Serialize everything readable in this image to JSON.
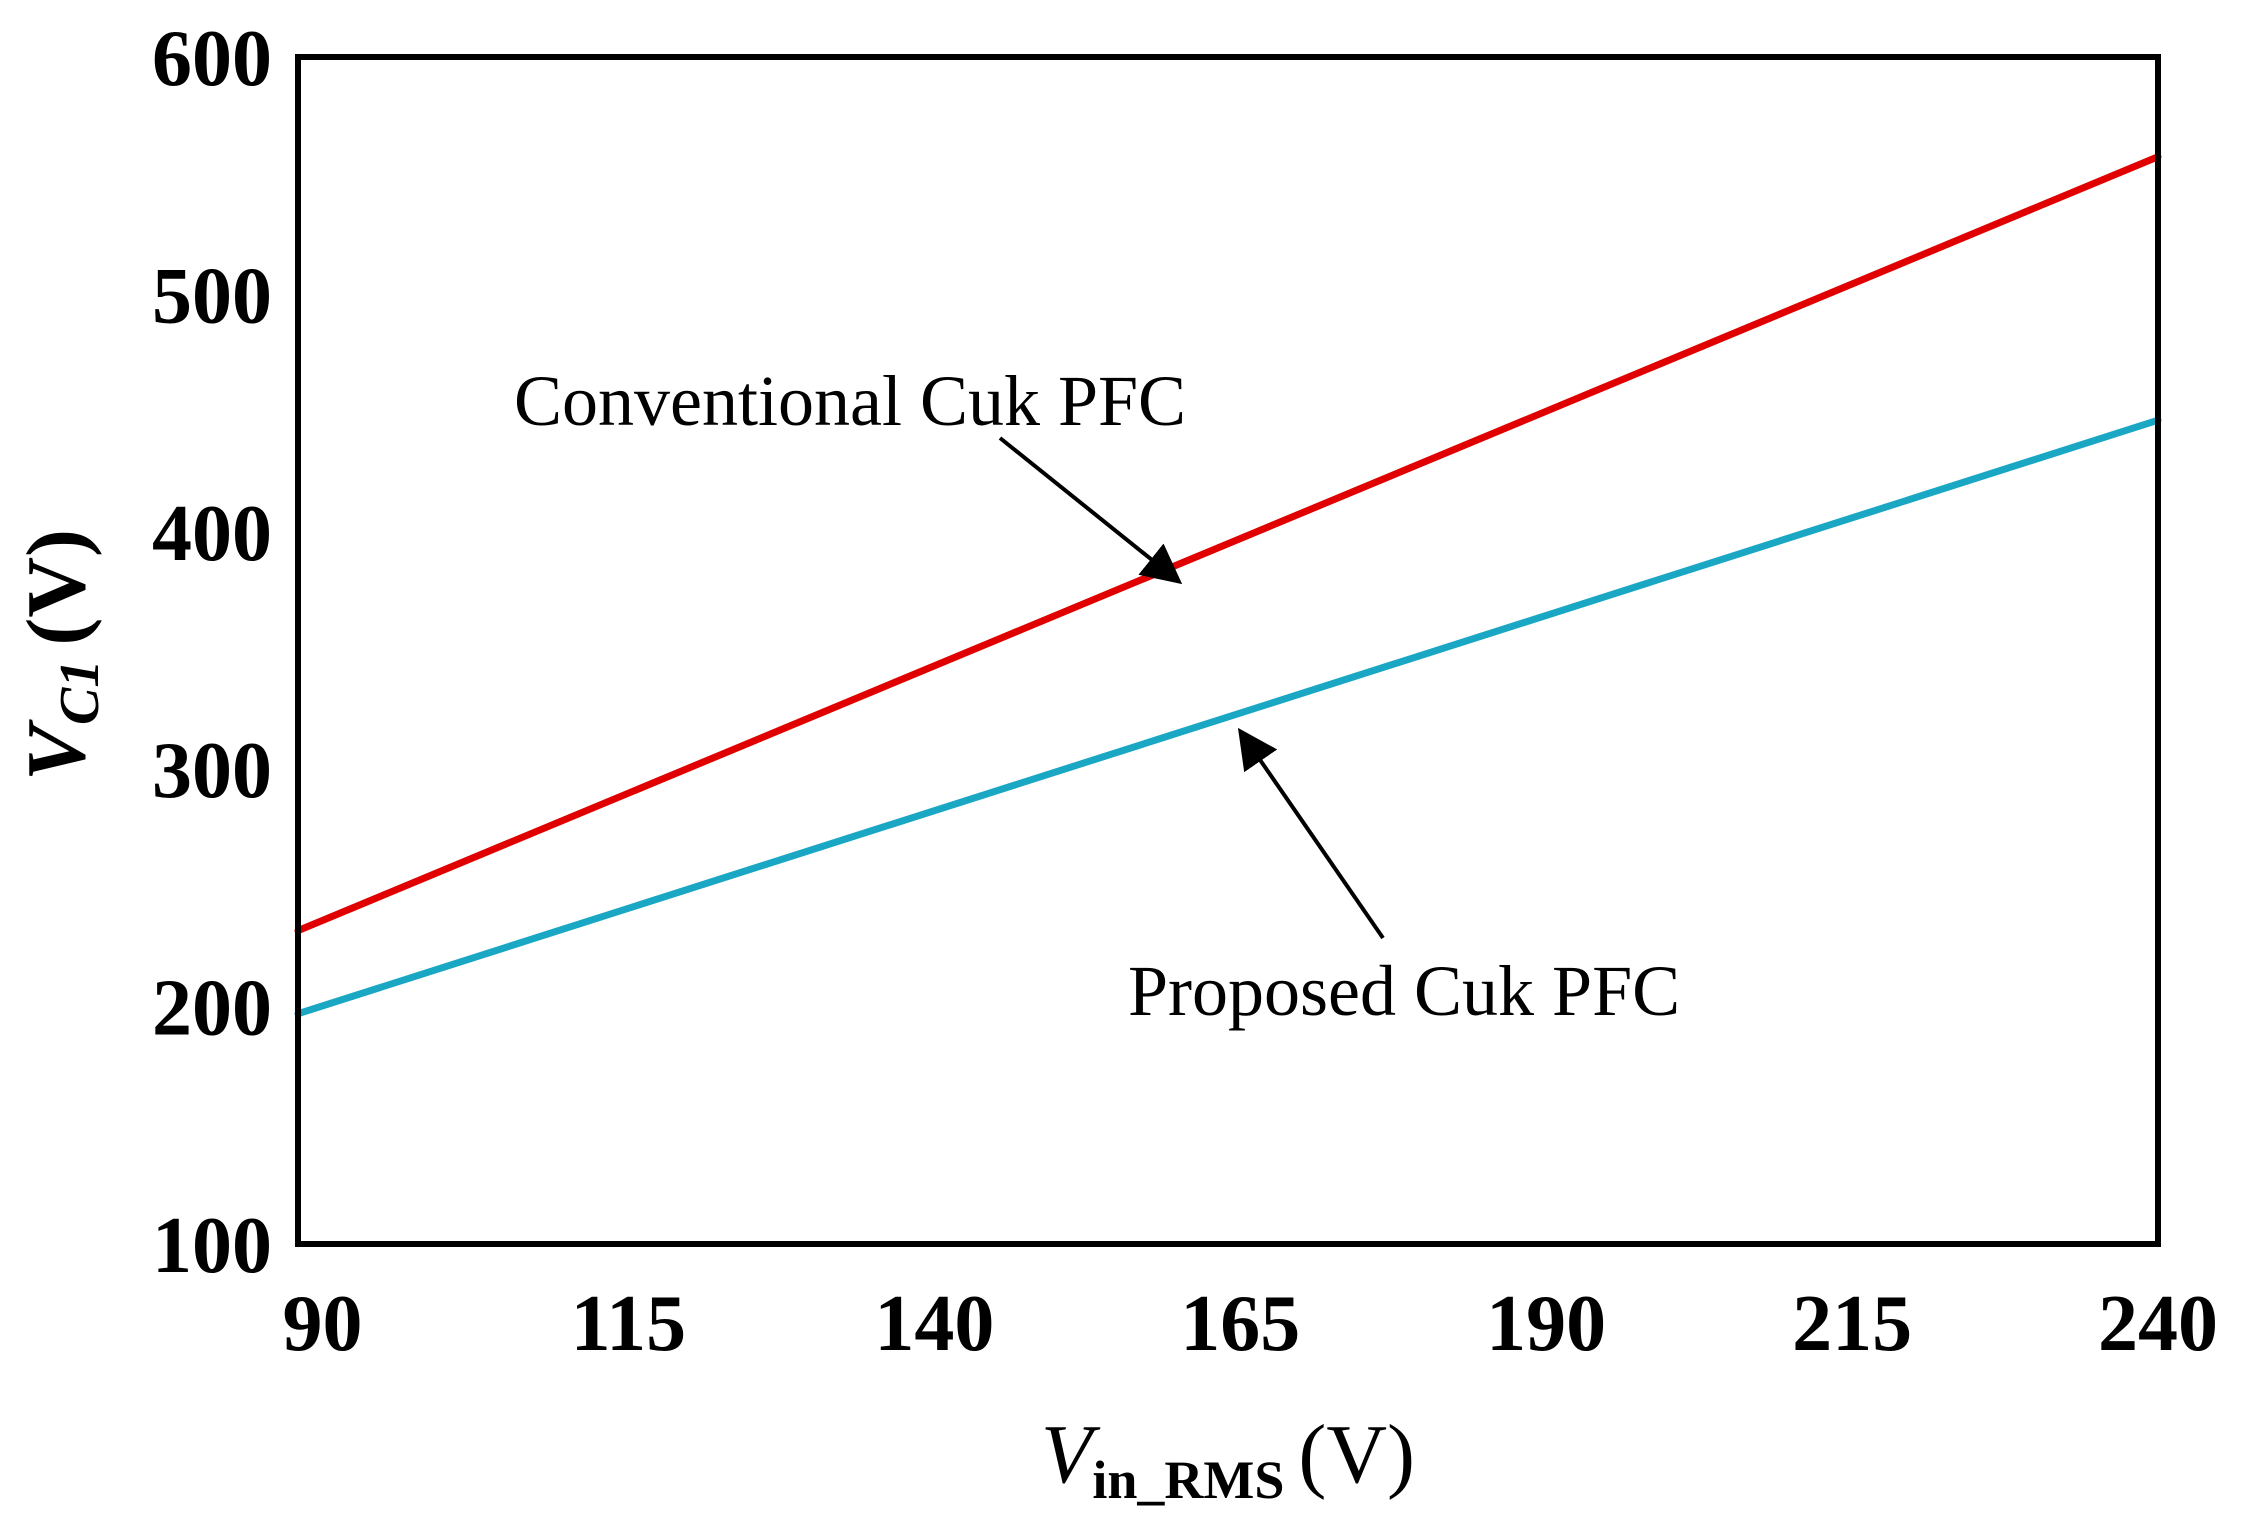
{
  "chart_data": {
    "type": "line",
    "title": "",
    "xlabel": {
      "main": "V",
      "sub": "in_RMS",
      "unit": "(V)"
    },
    "ylabel": {
      "main": "V",
      "sub": "C1",
      "unit": "(V)"
    },
    "xlim": [
      88,
      240
    ],
    "ylim": [
      100,
      600
    ],
    "xticks": [
      90,
      115,
      140,
      165,
      190,
      215,
      240
    ],
    "yticks": [
      100,
      200,
      300,
      400,
      500,
      600
    ],
    "grid": false,
    "series": [
      {
        "name": "Conventional Cuk PFC",
        "color": "#e00000",
        "x": [
          88,
          240
        ],
        "y": [
          232,
          558
        ]
      },
      {
        "name": "Proposed Cuk PFC",
        "color": "#1aa7c4",
        "x": [
          88,
          240
        ],
        "y": [
          197,
          447
        ]
      }
    ],
    "annotations": [
      {
        "text": "Conventional Cuk PFC",
        "target_series": 0,
        "target": [
          160,
          379
        ]
      },
      {
        "text": "Proposed Cuk PFC",
        "target_series": 1,
        "target": [
          165,
          316
        ]
      }
    ]
  }
}
